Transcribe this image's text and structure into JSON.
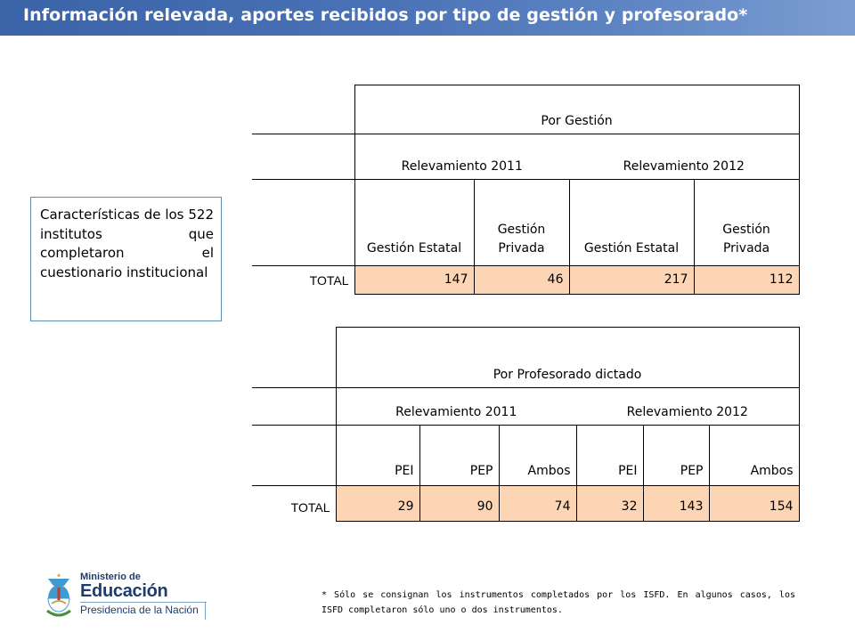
{
  "header": {
    "title": "Información relevada, aportes recibidos por tipo de gestión y profesorado*"
  },
  "sidebox": {
    "text": "Características de los 522 institutos que completaron el cuestionario institucional"
  },
  "table_gestion": {
    "group_title": "Por Gestión",
    "years": [
      "Relevamiento 2011",
      "Relevamiento 2012"
    ],
    "columns": [
      "Gestión Estatal",
      "Gestión Privada",
      "Gestión Estatal",
      "Gestión Privada"
    ],
    "row_label": "TOTAL",
    "values": [
      "147",
      "46",
      "217",
      "112"
    ]
  },
  "table_profesorado": {
    "group_title": "Por Profesorado dictado",
    "years": [
      "Relevamiento 2011",
      "Relevamiento 2012"
    ],
    "columns": [
      "PEI",
      "PEP",
      "Ambos",
      "PEI",
      "PEP",
      "Ambos"
    ],
    "row_label": "TOTAL",
    "values": [
      "29",
      "90",
      "74",
      "32",
      "143",
      "154"
    ]
  },
  "footnote": "* Sólo se consignan los instrumentos completados por los ISFD. En algunos casos, los ISFD completaron sólo uno o dos instrumentos.",
  "logo": {
    "line1": "Ministerio de",
    "line2": "Educación",
    "line3": "Presidencia de la Nación"
  },
  "colors": {
    "header_bar": "#4a72b6",
    "value_cell": "#fcd5b4",
    "logo_text": "#1f3c6e"
  }
}
